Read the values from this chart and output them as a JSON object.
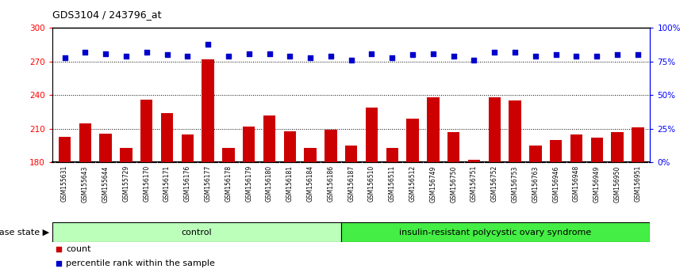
{
  "title": "GDS3104 / 243796_at",
  "samples": [
    "GSM155631",
    "GSM155643",
    "GSM155644",
    "GSM155729",
    "GSM156170",
    "GSM156171",
    "GSM156176",
    "GSM156177",
    "GSM156178",
    "GSM156179",
    "GSM156180",
    "GSM156181",
    "GSM156184",
    "GSM156186",
    "GSM156187",
    "GSM156510",
    "GSM156511",
    "GSM156512",
    "GSM156749",
    "GSM156750",
    "GSM156751",
    "GSM156752",
    "GSM156753",
    "GSM156763",
    "GSM156946",
    "GSM156948",
    "GSM156949",
    "GSM156950",
    "GSM156951"
  ],
  "counts": [
    203,
    215,
    206,
    193,
    236,
    224,
    205,
    272,
    193,
    212,
    222,
    208,
    193,
    209,
    195,
    229,
    193,
    219,
    238,
    207,
    182,
    238,
    235,
    195,
    200,
    205,
    202,
    207,
    211
  ],
  "percentile_ranks": [
    78,
    82,
    81,
    79,
    82,
    80,
    79,
    88,
    79,
    81,
    81,
    79,
    78,
    79,
    76,
    81,
    78,
    80,
    81,
    79,
    76,
    82,
    82,
    79,
    80,
    79,
    79,
    80,
    80
  ],
  "control_count": 14,
  "disease_count": 15,
  "bar_color": "#cc0000",
  "dot_color": "#0000cc",
  "ylim_left": [
    180,
    300
  ],
  "ylim_right": [
    0,
    100
  ],
  "yticks_left": [
    180,
    210,
    240,
    270,
    300
  ],
  "yticks_right": [
    0,
    25,
    50,
    75,
    100
  ],
  "yticklabels_right": [
    "0%",
    "25%",
    "50%",
    "75%",
    "100%"
  ],
  "grid_lines": [
    210,
    240,
    270
  ],
  "control_label": "control",
  "disease_label": "insulin-resistant polycystic ovary syndrome",
  "disease_state_label": "disease state",
  "legend_count_label": "count",
  "legend_percentile_label": "percentile rank within the sample",
  "control_color": "#bbffbb",
  "disease_color": "#44ee44",
  "xtick_bg_color": "#cccccc",
  "border_color": "#000000"
}
